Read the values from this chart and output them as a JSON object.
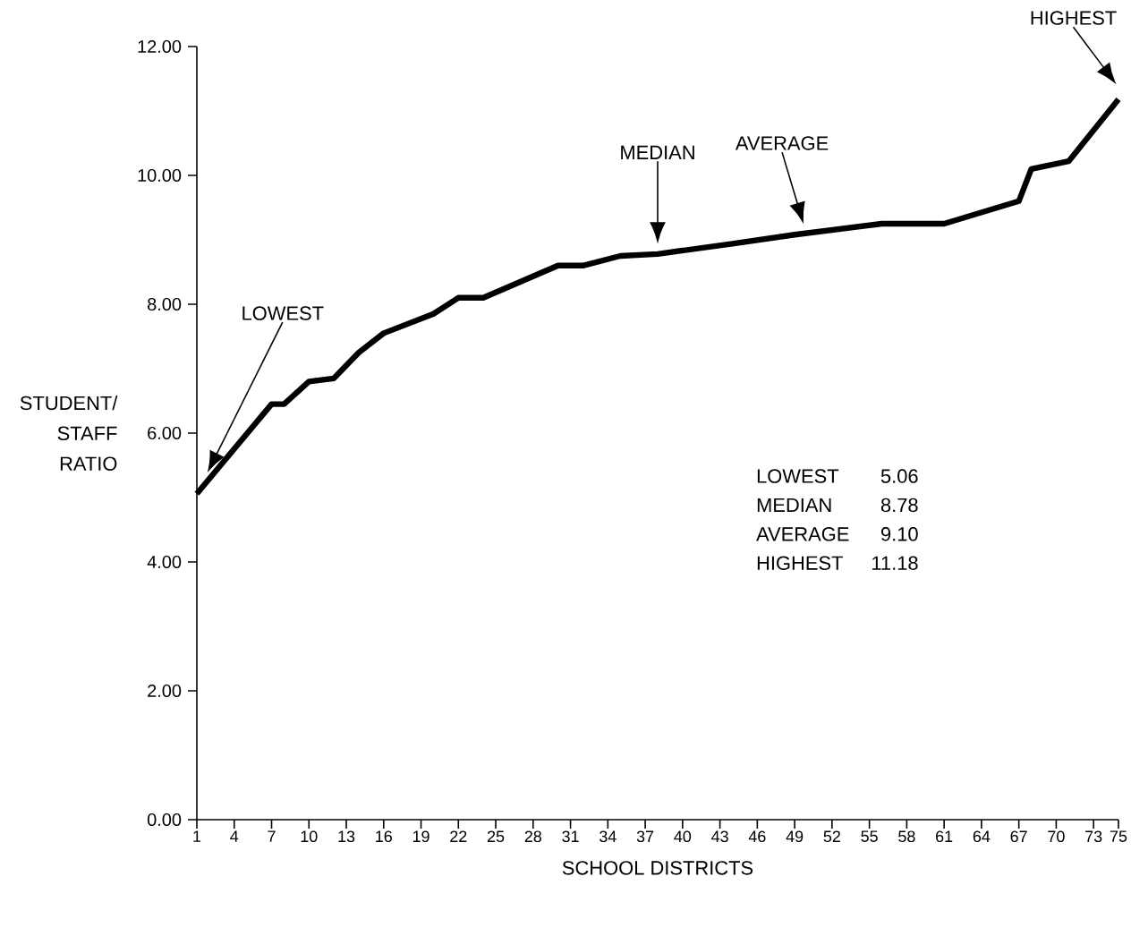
{
  "chart_data": {
    "type": "line",
    "xlabel": "SCHOOL DISTRICTS",
    "ylabel": "STUDENT/ STAFF RATIO",
    "color": "#000000",
    "x": [
      1,
      7,
      8,
      10,
      12,
      14,
      16,
      20,
      22,
      24,
      30,
      32,
      35,
      38,
      44,
      49,
      56,
      61,
      67,
      68,
      71,
      75
    ],
    "values": [
      5.06,
      6.45,
      6.45,
      6.8,
      6.85,
      7.25,
      7.55,
      7.85,
      8.1,
      8.1,
      8.6,
      8.6,
      8.75,
      8.78,
      8.94,
      9.08,
      9.25,
      9.25,
      9.6,
      10.1,
      10.22,
      11.18
    ],
    "xlim": [
      1,
      75
    ],
    "xticks": [
      1,
      4,
      7,
      10,
      13,
      16,
      19,
      22,
      25,
      28,
      31,
      34,
      37,
      40,
      43,
      46,
      49,
      52,
      55,
      58,
      61,
      64,
      67,
      70,
      73,
      75
    ],
    "ylim": [
      0,
      12
    ],
    "yticks": [
      {
        "value": 0,
        "label": "0.00"
      },
      {
        "value": 2,
        "label": "2.00"
      },
      {
        "value": 4,
        "label": "4.00"
      },
      {
        "value": 6,
        "label": "6.00"
      },
      {
        "value": 8,
        "label": "8.00"
      },
      {
        "value": 10,
        "label": "10.00"
      },
      {
        "value": 12,
        "label": "12.00"
      }
    ],
    "annotations": [
      "LOWEST",
      "MEDIAN",
      "AVERAGE",
      "HIGHEST",
      "LOWEST",
      "5.06",
      "MEDIAN",
      "8.78",
      "AVERAGE",
      "9.10",
      "HIGHEST",
      "11.18"
    ]
  }
}
